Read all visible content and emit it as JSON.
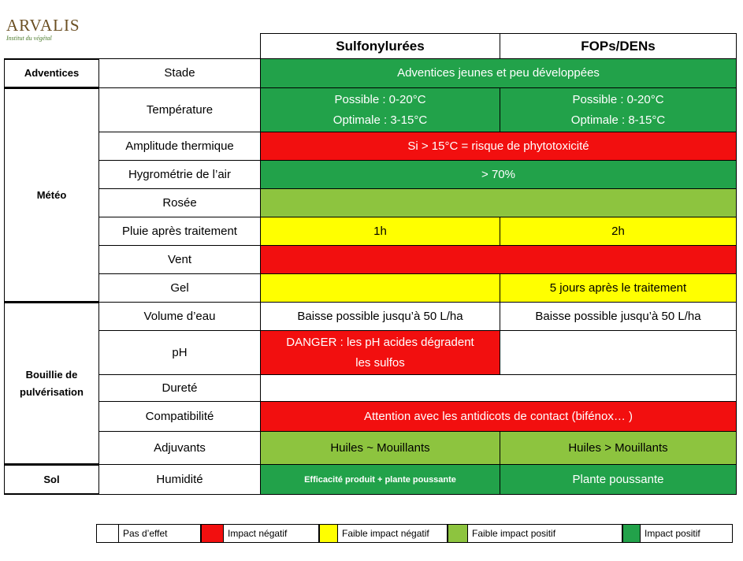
{
  "logo": {
    "name": "ARVALIS",
    "tagline": "Institut du végétal"
  },
  "table": {
    "header": [
      "Sulfonylurées",
      "FOPs/DENs"
    ],
    "groups": [
      "Adventices",
      "Météo",
      "Bouillie de pulvérisation",
      "Sol"
    ],
    "rows": [
      {
        "label": "Stade",
        "value": [
          "Adventices jeunes et peu développées"
        ]
      },
      {
        "label": "Température",
        "sulfo": [
          "Possible : 0-20°C",
          "Optimale : 3-15°C"
        ],
        "fops": [
          "Possible : 0-20°C",
          "Optimale : 8-15°C"
        ]
      },
      {
        "label": "Amplitude thermique",
        "value": [
          "Si > 15°C = risque de phytotoxicité"
        ]
      },
      {
        "label": "Hygrométrie de l’air",
        "value": [
          "> 70%"
        ]
      },
      {
        "label": "Rosée"
      },
      {
        "label": "Pluie après traitement",
        "sulfo": [
          "1h"
        ],
        "fops": [
          "2h"
        ]
      },
      {
        "label": "Vent"
      },
      {
        "label": "Gel",
        "fops": [
          "5 jours après le traitement"
        ]
      },
      {
        "label": "Volume d’eau",
        "sulfo": [
          "Baisse possible jusqu’à 50 L/ha"
        ],
        "fops": [
          "Baisse possible jusqu’à 50 L/ha"
        ]
      },
      {
        "label": "pH",
        "sulfo": [
          "DANGER : les pH acides dégradent",
          "les sulfos"
        ]
      },
      {
        "label": "Dureté"
      },
      {
        "label": "Compatibilité",
        "value": [
          "Attention avec les antidicots de contact (bifénox… )"
        ]
      },
      {
        "label": "Adjuvants",
        "sulfo": [
          "Huiles ~ Mouillants"
        ],
        "fops": [
          "Huiles > Mouillants"
        ]
      },
      {
        "label": "Humidité",
        "sulfo": [
          "Efficacité produit + plante poussante"
        ],
        "fops": [
          "Plante poussante"
        ]
      }
    ]
  },
  "legend": [
    "Pas d’effet",
    "Impact négatif",
    "Faible impact négatif",
    "Faible impact positif",
    "Impact positif"
  ]
}
